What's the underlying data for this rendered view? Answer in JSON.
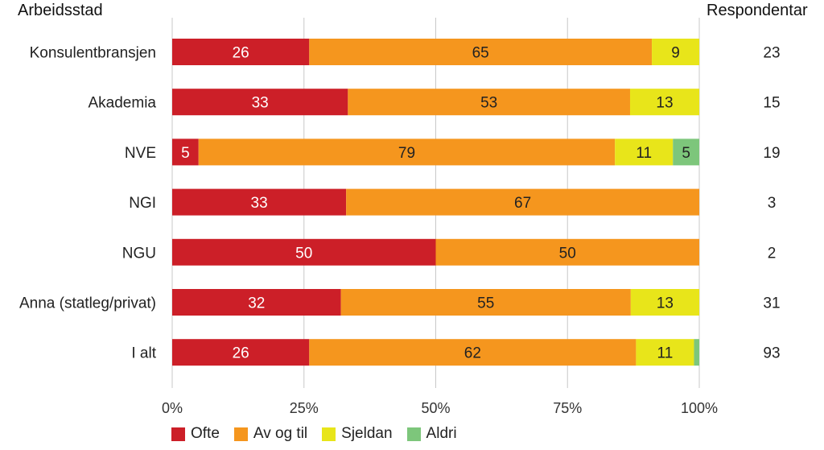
{
  "header": {
    "left_title": "Arbeidsstad",
    "right_title": "Respondentar"
  },
  "chart_data": {
    "type": "bar",
    "orientation": "horizontal",
    "stacked": true,
    "percent_scale": true,
    "categories": [
      "Konsulentbransjen",
      "Akademia",
      "NVE",
      "NGI",
      "NGU",
      "Anna (statleg/privat)",
      "I alt"
    ],
    "series": [
      {
        "name": "Ofte",
        "color": "#cc1f28",
        "values": [
          26,
          33,
          5,
          33,
          50,
          32,
          26
        ],
        "labels": [
          "26",
          "33",
          "5",
          "33",
          "50",
          "32",
          "26"
        ]
      },
      {
        "name": "Av og til",
        "color": "#f5961e",
        "values": [
          65,
          53,
          79,
          67,
          50,
          55,
          62
        ],
        "labels": [
          "65",
          "53",
          "79",
          "67",
          "50",
          "55",
          "62"
        ]
      },
      {
        "name": "Sjeldan",
        "color": "#e8e51a",
        "values": [
          9,
          13,
          11,
          0,
          0,
          13,
          11
        ],
        "labels": [
          "9",
          "13",
          "11",
          "",
          "",
          "13",
          "11"
        ]
      },
      {
        "name": "Aldri",
        "color": "#7dc67b",
        "values": [
          0,
          0,
          5,
          0,
          0,
          0,
          1
        ],
        "labels": [
          "",
          "",
          "5",
          "",
          "",
          "",
          ""
        ]
      }
    ],
    "respondents": [
      "23",
      "15",
      "19",
      "3",
      "2",
      "31",
      "93"
    ],
    "xlim": [
      0,
      100
    ],
    "x_ticks": [
      "0%",
      "25%",
      "50%",
      "75%",
      "100%"
    ],
    "grid": true,
    "legend_position": "bottom-left"
  }
}
